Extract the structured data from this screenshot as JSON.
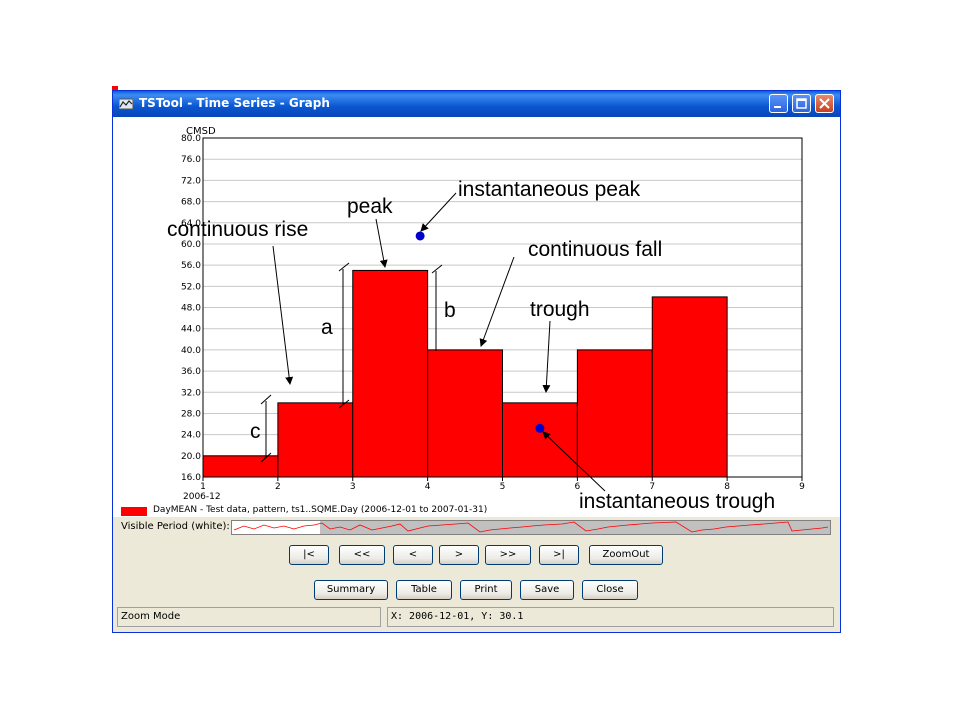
{
  "window": {
    "title": "TSTool - Time Series - Graph"
  },
  "chart_data": {
    "type": "bar",
    "ylabel": "CMSD",
    "ylim": [
      16.0,
      80.0
    ],
    "xlim": [
      1,
      9
    ],
    "yticks": [
      "16.0",
      "20.0",
      "24.0",
      "28.0",
      "32.0",
      "36.0",
      "40.0",
      "44.0",
      "48.0",
      "52.0",
      "56.0",
      "60.0",
      "64.0",
      "68.0",
      "72.0",
      "76.0",
      "80.0"
    ],
    "xticks": [
      "1",
      "2",
      "3",
      "4",
      "5",
      "6",
      "7",
      "8",
      "9"
    ],
    "x_start_label": "2006-12",
    "grid": true,
    "bar_color": "#ff0000",
    "bars": [
      {
        "x0": 1,
        "x1": 2,
        "value": 20
      },
      {
        "x0": 2,
        "x1": 3,
        "value": 30
      },
      {
        "x0": 3,
        "x1": 4,
        "value": 55
      },
      {
        "x0": 4,
        "x1": 5,
        "value": 40
      },
      {
        "x0": 5,
        "x1": 6,
        "value": 30
      },
      {
        "x0": 6,
        "x1": 7,
        "value": 40
      },
      {
        "x0": 7,
        "x1": 8,
        "value": 50
      }
    ],
    "points": [
      {
        "x": 3.9,
        "y": 61.5,
        "name": "instantaneous peak"
      },
      {
        "x": 5.5,
        "y": 25.2,
        "name": "instantaneous trough"
      }
    ],
    "point_color": "#0000cc",
    "annotations": {
      "instantaneous_peak": "instantaneous peak",
      "peak": "peak",
      "continuous_rise": "continuous rise",
      "continuous_fall": "continuous fall",
      "trough": "trough",
      "instantaneous_trough": "instantaneous trough",
      "a": "a",
      "b": "b",
      "c": "c"
    }
  },
  "legend": {
    "text": "DayMEAN - Test data, pattern, ts1..SQME.Day (2006-12-01 to 2007-01-31)",
    "color": "#ff0000"
  },
  "visible_period": {
    "label": "Visible Period (white):"
  },
  "nav_buttons": {
    "first": "|<",
    "prev_page": "<<",
    "prev": "<",
    "next": ">",
    "next_page": ">>",
    "last": ">|",
    "zoom_out": "ZoomOut"
  },
  "action_buttons": {
    "summary": "Summary",
    "table": "Table",
    "print": "Print",
    "save": "Save",
    "close": "Close"
  },
  "status": {
    "mode": "Zoom Mode",
    "coords": "X:  2006-12-01,  Y:  30.1"
  }
}
